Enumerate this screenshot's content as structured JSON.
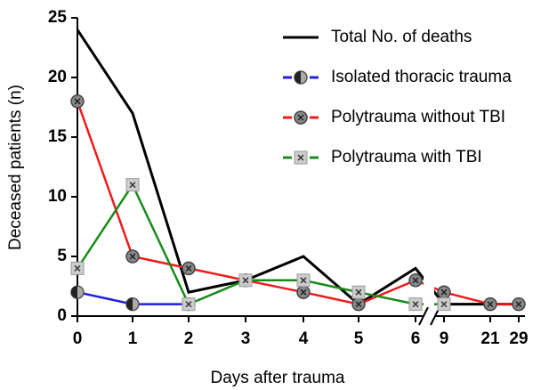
{
  "chart_data": {
    "type": "line",
    "xlabel": "Days after trauma",
    "ylabel": "Deceased patients (n)",
    "categories": [
      "0",
      "1",
      "2",
      "3",
      "4",
      "5",
      "6",
      "9",
      "21",
      "29"
    ],
    "ylim": [
      0,
      25
    ],
    "yticks": [
      0,
      5,
      10,
      15,
      20,
      25
    ],
    "series": [
      {
        "name": "Total No. of deaths",
        "color": "#000000",
        "values": [
          24,
          17,
          2,
          3,
          5,
          1,
          4,
          1,
          1,
          1
        ]
      },
      {
        "name": "Isolated thoracic trauma",
        "color": "#1f1fe0",
        "values": [
          2,
          1,
          1,
          null,
          null,
          null,
          null,
          null,
          null,
          null
        ]
      },
      {
        "name": "Polytrauma without TBI",
        "color": "#ee1c1c",
        "values": [
          18,
          5,
          4,
          3,
          2,
          1,
          3,
          2,
          1,
          1
        ]
      },
      {
        "name": "Polytrauma with TBI",
        "color": "#1a8a1a",
        "values": [
          4,
          11,
          1,
          3,
          3,
          2,
          1,
          1,
          null,
          null
        ]
      }
    ]
  }
}
